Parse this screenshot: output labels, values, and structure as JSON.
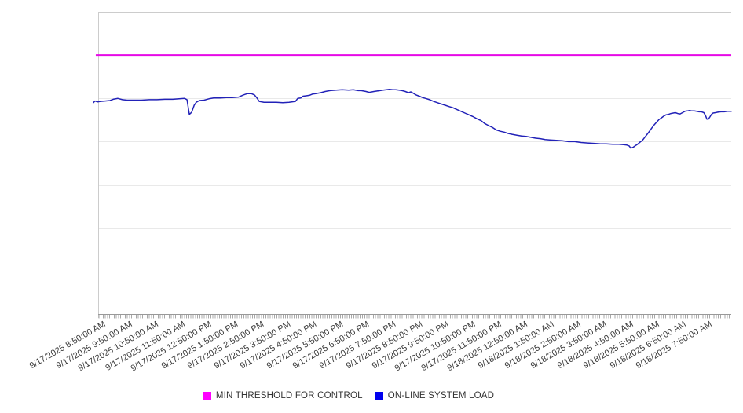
{
  "chart_data": {
    "type": "line",
    "title": "",
    "xlabel": "",
    "ylabel": "",
    "grid": "horizontal",
    "legend_position": "bottom-center",
    "x_axis": {
      "tick_labels": [
        "9/17/2025 8:50:00 AM",
        "9/17/2025 9:50:00 AM",
        "9/17/2025 10:50:00 AM",
        "9/17/2025 11:50:00 AM",
        "9/17/2025 12:50:00 PM",
        "9/17/2025 1:50:00 PM",
        "9/17/2025 2:50:00 PM",
        "9/17/2025 3:50:00 PM",
        "9/17/2025 4:50:00 PM",
        "9/17/2025 5:50:00 PM",
        "9/17/2025 6:50:00 PM",
        "9/17/2025 7:50:00 PM",
        "9/17/2025 8:50:00 PM",
        "9/17/2025 9:50:00 PM",
        "9/17/2025 10:50:00 PM",
        "9/17/2025 11:50:00 PM",
        "9/18/2025 12:50:00 AM",
        "9/18/2025 1:50:00 AM",
        "9/18/2025 2:50:00 AM",
        "9/18/2025 3:50:00 AM",
        "9/18/2025 4:50:00 AM",
        "9/18/2025 5:50:00 AM",
        "9/18/2025 6:50:00 AM",
        "9/18/2025 7:50:00 AM"
      ],
      "minor_ticks_per_hour": 12,
      "label_rotation_deg": -30
    },
    "y_axis": {
      "tick_labels": [],
      "note": "no numeric y-axis labels visible; series values estimated in gridline units (0 = bottom axis, 7 = top border)",
      "ylim": [
        0,
        7
      ],
      "gridlines_at": [
        1,
        2,
        3,
        4,
        5,
        6
      ]
    },
    "series": [
      {
        "name": "MIN THRESHOLD FOR CONTROL",
        "kind": "threshold-constant",
        "color": "#E609E6",
        "constant_value": 6.0,
        "t_range": [
          -0.21,
          23.89
        ]
      },
      {
        "name": "ON-LINE SYSTEM LOAD",
        "kind": "line",
        "color": "#2222B8",
        "points": [
          [
            -0.3,
            4.9
          ],
          [
            -0.24,
            4.94
          ],
          [
            -0.15,
            4.92
          ],
          [
            -0.03,
            4.93
          ],
          [
            0.15,
            4.94
          ],
          [
            0.33,
            4.95
          ],
          [
            0.45,
            4.98
          ],
          [
            0.63,
            5.0
          ],
          [
            0.8,
            4.97
          ],
          [
            0.98,
            4.96
          ],
          [
            1.22,
            4.96
          ],
          [
            1.52,
            4.96
          ],
          [
            1.82,
            4.97
          ],
          [
            2.11,
            4.97
          ],
          [
            2.41,
            4.98
          ],
          [
            2.71,
            4.98
          ],
          [
            2.95,
            4.99
          ],
          [
            3.16,
            5.0
          ],
          [
            3.25,
            4.97
          ],
          [
            3.34,
            4.63
          ],
          [
            3.43,
            4.68
          ],
          [
            3.52,
            4.84
          ],
          [
            3.6,
            4.91
          ],
          [
            3.72,
            4.95
          ],
          [
            3.9,
            4.96
          ],
          [
            4.08,
            4.99
          ],
          [
            4.26,
            5.01
          ],
          [
            4.5,
            5.01
          ],
          [
            4.74,
            5.02
          ],
          [
            4.97,
            5.02
          ],
          [
            5.21,
            5.03
          ],
          [
            5.39,
            5.08
          ],
          [
            5.54,
            5.11
          ],
          [
            5.69,
            5.11
          ],
          [
            5.81,
            5.08
          ],
          [
            5.9,
            5.01
          ],
          [
            5.99,
            4.93
          ],
          [
            6.17,
            4.91
          ],
          [
            6.4,
            4.91
          ],
          [
            6.64,
            4.91
          ],
          [
            6.88,
            4.9
          ],
          [
            7.12,
            4.91
          ],
          [
            7.36,
            4.93
          ],
          [
            7.45,
            5.0
          ],
          [
            7.57,
            5.01
          ],
          [
            7.65,
            5.05
          ],
          [
            7.77,
            5.06
          ],
          [
            7.89,
            5.07
          ],
          [
            8.01,
            5.1
          ],
          [
            8.13,
            5.11
          ],
          [
            8.31,
            5.13
          ],
          [
            8.49,
            5.16
          ],
          [
            8.67,
            5.18
          ],
          [
            8.91,
            5.19
          ],
          [
            9.14,
            5.2
          ],
          [
            9.38,
            5.19
          ],
          [
            9.56,
            5.2
          ],
          [
            9.74,
            5.18
          ],
          [
            9.86,
            5.18
          ],
          [
            10.04,
            5.16
          ],
          [
            10.16,
            5.14
          ],
          [
            10.34,
            5.16
          ],
          [
            10.46,
            5.17
          ],
          [
            10.57,
            5.18
          ],
          [
            10.69,
            5.19
          ],
          [
            10.81,
            5.2
          ],
          [
            10.93,
            5.21
          ],
          [
            11.05,
            5.2
          ],
          [
            11.17,
            5.2
          ],
          [
            11.29,
            5.19
          ],
          [
            11.41,
            5.18
          ],
          [
            11.53,
            5.16
          ],
          [
            11.65,
            5.13
          ],
          [
            11.74,
            5.15
          ],
          [
            11.83,
            5.12
          ],
          [
            11.94,
            5.08
          ],
          [
            12.06,
            5.05
          ],
          [
            12.18,
            5.02
          ],
          [
            12.3,
            5.0
          ],
          [
            12.45,
            4.97
          ],
          [
            12.6,
            4.93
          ],
          [
            12.75,
            4.9
          ],
          [
            12.9,
            4.87
          ],
          [
            13.05,
            4.84
          ],
          [
            13.2,
            4.81
          ],
          [
            13.35,
            4.78
          ],
          [
            13.49,
            4.74
          ],
          [
            13.64,
            4.7
          ],
          [
            13.79,
            4.66
          ],
          [
            13.94,
            4.62
          ],
          [
            14.09,
            4.58
          ],
          [
            14.24,
            4.53
          ],
          [
            14.39,
            4.49
          ],
          [
            14.54,
            4.42
          ],
          [
            14.69,
            4.37
          ],
          [
            14.83,
            4.33
          ],
          [
            14.98,
            4.27
          ],
          [
            15.13,
            4.24
          ],
          [
            15.28,
            4.22
          ],
          [
            15.43,
            4.19
          ],
          [
            15.58,
            4.17
          ],
          [
            15.76,
            4.15
          ],
          [
            15.94,
            4.13
          ],
          [
            16.11,
            4.12
          ],
          [
            16.29,
            4.1
          ],
          [
            16.47,
            4.08
          ],
          [
            16.65,
            4.07
          ],
          [
            16.83,
            4.05
          ],
          [
            17.01,
            4.04
          ],
          [
            17.25,
            4.03
          ],
          [
            17.48,
            4.02
          ],
          [
            17.72,
            4.0
          ],
          [
            17.96,
            4.0
          ],
          [
            18.2,
            3.98
          ],
          [
            18.44,
            3.97
          ],
          [
            18.68,
            3.96
          ],
          [
            18.92,
            3.95
          ],
          [
            19.15,
            3.95
          ],
          [
            19.39,
            3.94
          ],
          [
            19.63,
            3.94
          ],
          [
            19.81,
            3.93
          ],
          [
            19.93,
            3.92
          ],
          [
            20.02,
            3.9
          ],
          [
            20.08,
            3.85
          ],
          [
            20.17,
            3.87
          ],
          [
            20.26,
            3.91
          ],
          [
            20.34,
            3.94
          ],
          [
            20.43,
            3.99
          ],
          [
            20.52,
            4.03
          ],
          [
            20.61,
            4.1
          ],
          [
            20.7,
            4.17
          ],
          [
            20.79,
            4.24
          ],
          [
            20.88,
            4.32
          ],
          [
            20.97,
            4.39
          ],
          [
            21.06,
            4.45
          ],
          [
            21.15,
            4.51
          ],
          [
            21.24,
            4.55
          ],
          [
            21.33,
            4.59
          ],
          [
            21.42,
            4.62
          ],
          [
            21.51,
            4.63
          ],
          [
            21.6,
            4.65
          ],
          [
            21.69,
            4.66
          ],
          [
            21.77,
            4.67
          ],
          [
            21.86,
            4.65
          ],
          [
            21.95,
            4.64
          ],
          [
            22.04,
            4.67
          ],
          [
            22.13,
            4.7
          ],
          [
            22.22,
            4.71
          ],
          [
            22.31,
            4.72
          ],
          [
            22.4,
            4.71
          ],
          [
            22.49,
            4.71
          ],
          [
            22.58,
            4.7
          ],
          [
            22.67,
            4.69
          ],
          [
            22.76,
            4.69
          ],
          [
            22.85,
            4.67
          ],
          [
            22.91,
            4.61
          ],
          [
            22.97,
            4.52
          ],
          [
            23.02,
            4.52
          ],
          [
            23.08,
            4.57
          ],
          [
            23.14,
            4.63
          ],
          [
            23.2,
            4.66
          ],
          [
            23.29,
            4.67
          ],
          [
            23.38,
            4.68
          ],
          [
            23.5,
            4.69
          ],
          [
            23.62,
            4.69
          ],
          [
            23.74,
            4.7
          ],
          [
            23.89,
            4.7
          ]
        ]
      }
    ],
    "style": {
      "background": "#ffffff",
      "plot_border_color": "#cccccc",
      "gridline_color": "#e9e9e9",
      "axis_line_color": "#999999",
      "tick_color": "#a8a8a8",
      "label_color": "#3a3a3a"
    }
  },
  "legend": {
    "items": [
      {
        "label": "MIN THRESHOLD FOR CONTROL",
        "swatch_color": "#FF00FF"
      },
      {
        "label": "ON-LINE SYSTEM LOAD",
        "swatch_color": "#0000EE"
      }
    ]
  }
}
